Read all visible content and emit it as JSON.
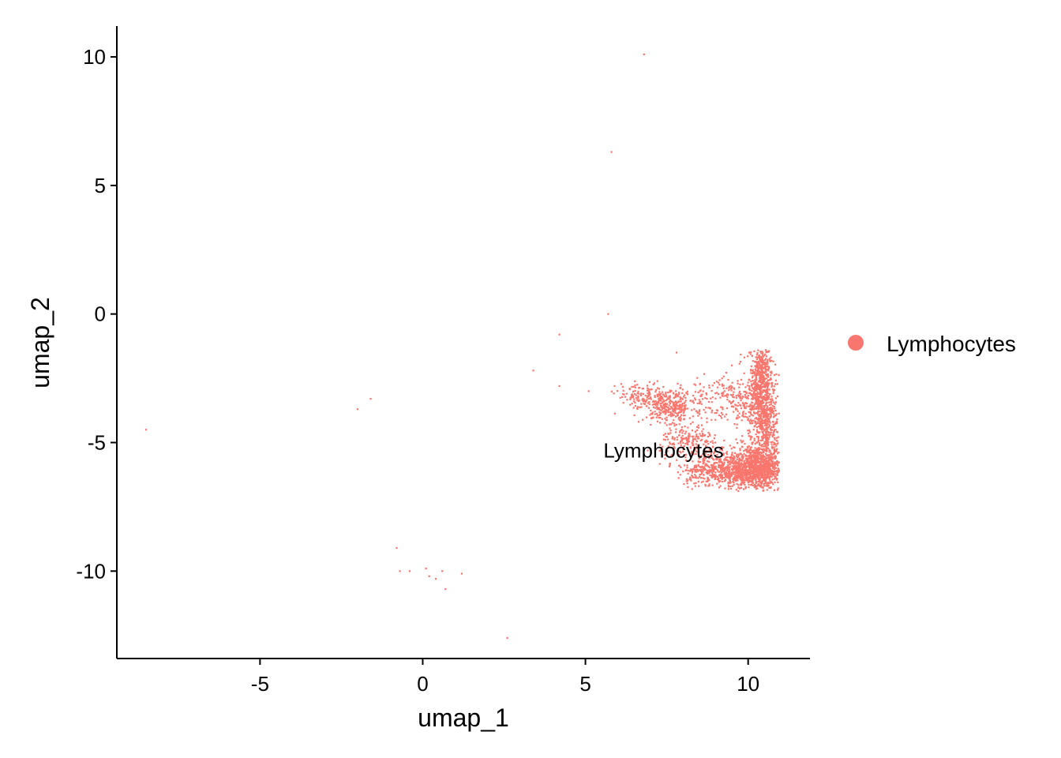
{
  "chart_data": {
    "type": "scatter",
    "title": "",
    "xlabel": "umap_1",
    "ylabel": "umap_2",
    "xlim": [
      -9.4,
      11.9
    ],
    "ylim": [
      -13.4,
      11.2
    ],
    "x_ticks": [
      -5,
      0,
      5,
      10
    ],
    "x_tick_labels": [
      "-5",
      "0",
      "5",
      "10"
    ],
    "y_ticks": [
      -10,
      -5,
      0,
      5,
      10
    ],
    "y_tick_labels": [
      "-10",
      "-5",
      "0",
      "5",
      "10"
    ],
    "grid": false,
    "legend_position": "right",
    "series": [
      {
        "name": "Lymphocytes",
        "color": "#F8766D",
        "points": [
          [
            6.8,
            10.1
          ],
          [
            5.8,
            6.3
          ],
          [
            5.7,
            0.0
          ],
          [
            4.2,
            -0.8
          ],
          [
            3.4,
            -2.2
          ],
          [
            4.2,
            -2.8
          ],
          [
            5.1,
            -3.0
          ],
          [
            -2.0,
            -3.7
          ],
          [
            -1.6,
            -3.3
          ],
          [
            -8.5,
            -4.5
          ],
          [
            -0.8,
            -9.1
          ],
          [
            -0.7,
            -10.0
          ],
          [
            -0.4,
            -10.0
          ],
          [
            0.1,
            -9.9
          ],
          [
            0.2,
            -10.2
          ],
          [
            0.4,
            -10.3
          ],
          [
            0.6,
            -10.0
          ],
          [
            0.7,
            -10.7
          ],
          [
            1.2,
            -10.1
          ],
          [
            2.6,
            -12.6
          ],
          [
            7.8,
            -1.5
          ],
          [
            9.5,
            -2.0
          ]
        ],
        "clusters": [
          {
            "cx": 10.4,
            "cy": -2.5,
            "sx": 0.18,
            "sy": 0.8,
            "n": 500
          },
          {
            "cx": 10.5,
            "cy": -4.2,
            "sx": 0.22,
            "sy": 0.9,
            "n": 600
          },
          {
            "cx": 10.3,
            "cy": -6.0,
            "sx": 0.45,
            "sy": 0.45,
            "n": 900
          },
          {
            "cx": 9.6,
            "cy": -6.0,
            "sx": 0.6,
            "sy": 0.35,
            "n": 450
          },
          {
            "cx": 8.9,
            "cy": -6.1,
            "sx": 0.55,
            "sy": 0.3,
            "n": 250
          },
          {
            "cx": 8.2,
            "cy": -5.0,
            "sx": 0.45,
            "sy": 0.35,
            "n": 200
          },
          {
            "cx": 7.6,
            "cy": -3.6,
            "sx": 0.4,
            "sy": 0.3,
            "n": 300
          },
          {
            "cx": 6.8,
            "cy": -3.2,
            "sx": 0.4,
            "sy": 0.25,
            "n": 140
          },
          {
            "cx": 9.7,
            "cy": -3.5,
            "sx": 0.35,
            "sy": 0.6,
            "n": 160
          },
          {
            "cx": 8.9,
            "cy": -3.2,
            "sx": 0.5,
            "sy": 0.35,
            "n": 90
          }
        ]
      }
    ],
    "annotations": [
      {
        "text": "Lymphocytes",
        "x": 7.4,
        "y": -5.3
      }
    ]
  }
}
